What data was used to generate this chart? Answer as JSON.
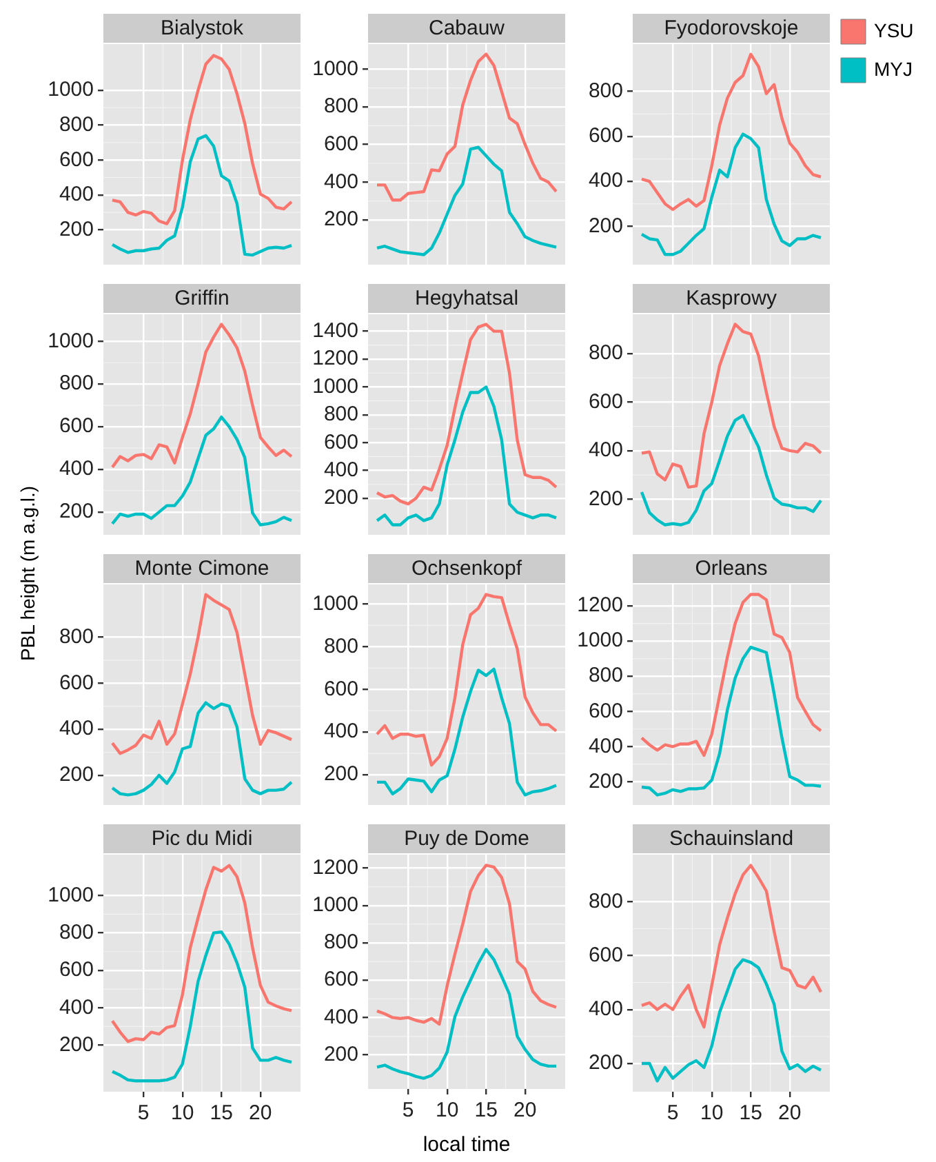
{
  "chart_data": [
    {
      "type": "line",
      "title": "Bialystok",
      "x": [
        1,
        2,
        3,
        4,
        5,
        6,
        7,
        8,
        9,
        10,
        11,
        12,
        13,
        14,
        15,
        16,
        17,
        18,
        19,
        20,
        21,
        22,
        23,
        24
      ],
      "xlim": [
        -0.15,
        25.15
      ],
      "xticks": [
        5,
        10,
        15,
        20
      ],
      "ylim": [
        0,
        1265
      ],
      "yticks": [
        200,
        400,
        600,
        800,
        1000
      ],
      "grid": true,
      "tick_labels": "y",
      "series": [
        {
          "color": "#f8766d",
          "values": [
            370,
            360,
            300,
            285,
            305,
            295,
            250,
            235,
            310,
            600,
            830,
            1000,
            1150,
            1200,
            1180,
            1120,
            980,
            810,
            580,
            405,
            380,
            330,
            320,
            360
          ]
        },
        {
          "color": "#00bfc4",
          "values": [
            115,
            90,
            70,
            80,
            80,
            90,
            95,
            140,
            165,
            330,
            590,
            720,
            740,
            680,
            510,
            480,
            350,
            60,
            55,
            75,
            95,
            100,
            95,
            110
          ]
        }
      ]
    },
    {
      "type": "line",
      "title": "Cabauw",
      "x": [
        1,
        2,
        3,
        4,
        5,
        6,
        7,
        8,
        9,
        10,
        11,
        12,
        13,
        14,
        15,
        16,
        17,
        18,
        19,
        20,
        21,
        22,
        23,
        24
      ],
      "xlim": [
        -0.15,
        25.15
      ],
      "xticks": [
        5,
        10,
        15,
        20
      ],
      "ylim": [
        -38,
        1133
      ],
      "yticks": [
        200,
        400,
        600,
        800,
        1000
      ],
      "grid": true,
      "tick_labels": "y",
      "series": [
        {
          "color": "#f8766d",
          "values": [
            385,
            385,
            305,
            305,
            340,
            345,
            350,
            465,
            460,
            550,
            590,
            810,
            940,
            1040,
            1080,
            1020,
            880,
            740,
            710,
            600,
            500,
            420,
            400,
            350
          ]
        },
        {
          "color": "#00bfc4",
          "values": [
            50,
            60,
            45,
            30,
            25,
            20,
            15,
            50,
            130,
            230,
            330,
            390,
            575,
            585,
            540,
            495,
            460,
            240,
            180,
            110,
            90,
            75,
            65,
            55
          ]
        }
      ]
    },
    {
      "type": "line",
      "title": "Fyodorovskoje",
      "x": [
        1,
        2,
        3,
        4,
        5,
        6,
        7,
        8,
        9,
        10,
        11,
        12,
        13,
        14,
        15,
        16,
        17,
        18,
        19,
        20,
        21,
        22,
        23,
        24
      ],
      "xlim": [
        -0.15,
        25.15
      ],
      "xticks": [
        5,
        10,
        15,
        20
      ],
      "ylim": [
        30,
        1010
      ],
      "yticks": [
        200,
        400,
        600,
        800
      ],
      "grid": true,
      "tick_labels": "y",
      "legend": "right",
      "series": [
        {
          "name": "YSU",
          "color": "#f8766d",
          "values": [
            410,
            400,
            350,
            300,
            275,
            300,
            320,
            290,
            315,
            470,
            650,
            770,
            840,
            870,
            965,
            910,
            790,
            830,
            680,
            570,
            530,
            470,
            430,
            420
          ]
        },
        {
          "name": "MYJ",
          "color": "#00bfc4",
          "values": [
            165,
            145,
            140,
            75,
            75,
            90,
            125,
            160,
            190,
            330,
            450,
            420,
            550,
            610,
            590,
            550,
            320,
            210,
            135,
            115,
            145,
            145,
            160,
            150
          ]
        }
      ]
    },
    {
      "type": "line",
      "title": "Griffin",
      "x": [
        1,
        2,
        3,
        4,
        5,
        6,
        7,
        8,
        9,
        10,
        11,
        12,
        13,
        14,
        15,
        16,
        17,
        18,
        19,
        20,
        21,
        22,
        23,
        24
      ],
      "xlim": [
        -0.15,
        25.15
      ],
      "xticks": [
        5,
        10,
        15,
        20
      ],
      "ylim": [
        93,
        1127
      ],
      "yticks": [
        200,
        400,
        600,
        800,
        1000
      ],
      "grid": true,
      "tick_labels": "y",
      "series": [
        {
          "color": "#f8766d",
          "values": [
            410,
            460,
            440,
            465,
            470,
            450,
            515,
            505,
            430,
            550,
            660,
            800,
            950,
            1020,
            1080,
            1030,
            970,
            860,
            700,
            550,
            505,
            465,
            490,
            460
          ]
        },
        {
          "color": "#00bfc4",
          "values": [
            145,
            190,
            180,
            190,
            190,
            170,
            200,
            230,
            230,
            275,
            340,
            450,
            560,
            590,
            645,
            600,
            540,
            455,
            195,
            140,
            145,
            155,
            175,
            160
          ]
        }
      ]
    },
    {
      "type": "line",
      "title": "Hegyhatsal",
      "x": [
        1,
        2,
        3,
        4,
        5,
        6,
        7,
        8,
        9,
        10,
        11,
        12,
        13,
        14,
        15,
        16,
        17,
        18,
        19,
        20,
        21,
        22,
        23,
        24
      ],
      "xlim": [
        -0.15,
        25.15
      ],
      "xticks": [
        5,
        10,
        15,
        20
      ],
      "ylim": [
        -62,
        1522
      ],
      "yticks": [
        200,
        400,
        600,
        800,
        1000,
        1200,
        1400
      ],
      "grid": true,
      "tick_labels": "y",
      "series": [
        {
          "color": "#f8766d",
          "values": [
            240,
            210,
            220,
            180,
            160,
            200,
            280,
            260,
            410,
            580,
            850,
            1100,
            1340,
            1430,
            1450,
            1400,
            1400,
            1100,
            620,
            370,
            350,
            350,
            330,
            280
          ]
        },
        {
          "color": "#00bfc4",
          "values": [
            40,
            80,
            10,
            10,
            60,
            80,
            40,
            60,
            160,
            440,
            620,
            820,
            960,
            960,
            1000,
            860,
            620,
            160,
            100,
            80,
            60,
            80,
            80,
            60
          ]
        }
      ]
    },
    {
      "type": "line",
      "title": "Kasprowy",
      "x": [
        1,
        2,
        3,
        4,
        5,
        6,
        7,
        8,
        9,
        10,
        11,
        12,
        13,
        14,
        15,
        16,
        17,
        18,
        19,
        20,
        21,
        22,
        23,
        24
      ],
      "xlim": [
        -0.15,
        25.15
      ],
      "xticks": [
        5,
        10,
        15,
        20
      ],
      "ylim": [
        54,
        961
      ],
      "yticks": [
        200,
        400,
        600,
        800
      ],
      "grid": true,
      "tick_labels": "y",
      "series": [
        {
          "color": "#f8766d",
          "values": [
            390,
            395,
            305,
            280,
            345,
            335,
            250,
            255,
            470,
            600,
            750,
            840,
            920,
            890,
            880,
            790,
            640,
            500,
            410,
            400,
            395,
            430,
            420,
            390
          ]
        },
        {
          "color": "#00bfc4",
          "values": [
            230,
            145,
            115,
            95,
            100,
            95,
            105,
            155,
            235,
            265,
            360,
            460,
            525,
            545,
            480,
            415,
            300,
            205,
            180,
            175,
            165,
            165,
            150,
            195
          ]
        }
      ]
    },
    {
      "type": "line",
      "title": "Monte Cimone",
      "ylabel": "PBL height (m a.g.l.)",
      "x": [
        1,
        2,
        3,
        4,
        5,
        6,
        7,
        8,
        9,
        10,
        11,
        12,
        13,
        14,
        15,
        16,
        17,
        18,
        19,
        20,
        21,
        22,
        23,
        24
      ],
      "xlim": [
        -0.15,
        25.15
      ],
      "xticks": [
        5,
        10,
        15,
        20
      ],
      "ylim": [
        71,
        1029
      ],
      "yticks": [
        200,
        400,
        600,
        800
      ],
      "grid": true,
      "tick_labels": "y",
      "series": [
        {
          "color": "#f8766d",
          "values": [
            340,
            295,
            310,
            330,
            375,
            360,
            435,
            335,
            380,
            510,
            640,
            800,
            985,
            960,
            940,
            920,
            820,
            640,
            460,
            335,
            395,
            385,
            370,
            355
          ]
        },
        {
          "color": "#00bfc4",
          "values": [
            145,
            120,
            115,
            120,
            135,
            160,
            200,
            165,
            215,
            315,
            325,
            470,
            515,
            490,
            510,
            500,
            410,
            185,
            135,
            120,
            135,
            135,
            140,
            170
          ]
        }
      ]
    },
    {
      "type": "line",
      "title": "Ochsenkopf",
      "x": [
        1,
        2,
        3,
        4,
        5,
        6,
        7,
        8,
        9,
        10,
        11,
        12,
        13,
        14,
        15,
        16,
        17,
        18,
        19,
        20,
        21,
        22,
        23,
        24
      ],
      "xlim": [
        -0.15,
        25.15
      ],
      "xticks": [
        5,
        10,
        15,
        20
      ],
      "ylim": [
        58,
        1092
      ],
      "yticks": [
        200,
        400,
        600,
        800,
        1000
      ],
      "grid": true,
      "tick_labels": "y",
      "series": [
        {
          "color": "#f8766d",
          "values": [
            390,
            430,
            370,
            390,
            390,
            380,
            385,
            245,
            285,
            370,
            560,
            810,
            950,
            980,
            1045,
            1035,
            1030,
            905,
            790,
            565,
            490,
            435,
            435,
            405
          ]
        },
        {
          "color": "#00bfc4",
          "values": [
            165,
            165,
            110,
            135,
            180,
            175,
            170,
            120,
            175,
            195,
            320,
            470,
            590,
            690,
            665,
            695,
            560,
            440,
            165,
            105,
            120,
            125,
            135,
            150
          ]
        }
      ]
    },
    {
      "type": "line",
      "title": "Orleans",
      "x": [
        1,
        2,
        3,
        4,
        5,
        6,
        7,
        8,
        9,
        10,
        11,
        12,
        13,
        14,
        15,
        16,
        17,
        18,
        19,
        20,
        21,
        22,
        23,
        24
      ],
      "xlim": [
        -0.15,
        25.15
      ],
      "xticks": [
        5,
        10,
        15,
        20
      ],
      "ylim": [
        68,
        1322
      ],
      "yticks": [
        200,
        400,
        600,
        800,
        1000,
        1200
      ],
      "grid": true,
      "tick_labels": "y",
      "series": [
        {
          "color": "#f8766d",
          "values": [
            450,
            410,
            380,
            410,
            400,
            415,
            415,
            430,
            350,
            470,
            690,
            910,
            1100,
            1220,
            1265,
            1265,
            1235,
            1040,
            1020,
            935,
            680,
            600,
            525,
            490
          ]
        },
        {
          "color": "#00bfc4",
          "values": [
            170,
            165,
            125,
            135,
            155,
            145,
            160,
            160,
            165,
            210,
            360,
            610,
            790,
            900,
            965,
            950,
            935,
            700,
            450,
            230,
            210,
            180,
            180,
            175
          ]
        }
      ]
    },
    {
      "type": "line",
      "title": "Pic du Midi",
      "x": [
        1,
        2,
        3,
        4,
        5,
        6,
        7,
        8,
        9,
        10,
        11,
        12,
        13,
        14,
        15,
        16,
        17,
        18,
        19,
        20,
        21,
        22,
        23,
        24
      ],
      "xlim": [
        -0.15,
        25.15
      ],
      "xticks": [
        5,
        10,
        15,
        20
      ],
      "ylim": [
        -48,
        1218
      ],
      "yticks": [
        200,
        400,
        600,
        800,
        1000
      ],
      "grid": true,
      "series": [
        {
          "color": "#f8766d",
          "values": [
            330,
            270,
            220,
            235,
            230,
            270,
            260,
            295,
            305,
            470,
            720,
            880,
            1030,
            1150,
            1130,
            1160,
            1100,
            960,
            720,
            520,
            430,
            410,
            395,
            385
          ]
        },
        {
          "color": "#00bfc4",
          "values": [
            60,
            40,
            15,
            10,
            10,
            10,
            10,
            15,
            30,
            100,
            300,
            540,
            680,
            800,
            805,
            740,
            640,
            510,
            185,
            120,
            120,
            135,
            120,
            110
          ]
        }
      ]
    },
    {
      "type": "line",
      "title": "Puy de Dome",
      "xlabel": "local time",
      "x": [
        1,
        2,
        3,
        4,
        5,
        6,
        7,
        8,
        9,
        10,
        11,
        12,
        13,
        14,
        15,
        16,
        17,
        18,
        19,
        20,
        21,
        22,
        23,
        24
      ],
      "xlim": [
        -0.15,
        25.15
      ],
      "xticks": [
        5,
        10,
        15,
        20
      ],
      "ylim": [
        18,
        1272
      ],
      "yticks": [
        200,
        400,
        600,
        800,
        1000,
        1200
      ],
      "grid": true,
      "series": [
        {
          "color": "#f8766d",
          "values": [
            435,
            420,
            400,
            395,
            400,
            385,
            375,
            395,
            365,
            570,
            740,
            900,
            1075,
            1160,
            1215,
            1205,
            1150,
            1010,
            700,
            660,
            540,
            490,
            470,
            455
          ]
        },
        {
          "color": "#00bfc4",
          "values": [
            135,
            145,
            125,
            110,
            100,
            85,
            75,
            90,
            130,
            215,
            405,
            510,
            600,
            690,
            765,
            710,
            620,
            525,
            300,
            230,
            175,
            150,
            140,
            140
          ]
        }
      ]
    },
    {
      "type": "line",
      "title": "Schauinsland",
      "x": [
        1,
        2,
        3,
        4,
        5,
        6,
        7,
        8,
        9,
        10,
        11,
        12,
        13,
        14,
        15,
        16,
        17,
        18,
        19,
        20,
        21,
        22,
        23,
        24
      ],
      "xlim": [
        -0.15,
        25.15
      ],
      "xticks": [
        5,
        10,
        15,
        20
      ],
      "ylim": [
        95,
        975
      ],
      "yticks": [
        200,
        400,
        600,
        800
      ],
      "grid": true,
      "series": [
        {
          "color": "#f8766d",
          "values": [
            415,
            425,
            400,
            420,
            400,
            450,
            490,
            400,
            335,
            490,
            640,
            740,
            830,
            900,
            935,
            890,
            840,
            690,
            555,
            545,
            490,
            480,
            520,
            465
          ]
        },
        {
          "color": "#00bfc4",
          "values": [
            200,
            200,
            135,
            185,
            145,
            170,
            195,
            210,
            185,
            265,
            390,
            470,
            550,
            585,
            575,
            555,
            495,
            420,
            245,
            180,
            195,
            170,
            190,
            175
          ]
        }
      ]
    }
  ]
}
